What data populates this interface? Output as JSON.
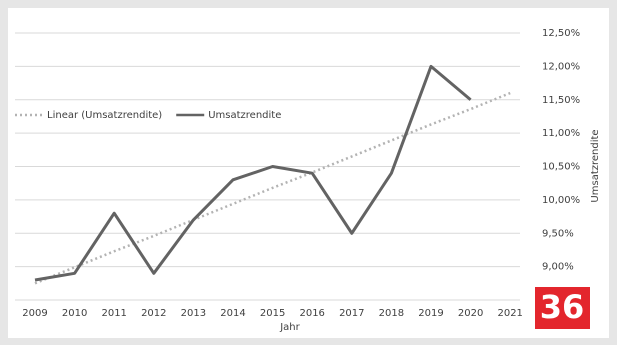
{
  "chart_data": {
    "type": "line",
    "x_label": "Jahr",
    "y_label": "Umsatzrendite",
    "categories": [
      "2009",
      "2010",
      "2011",
      "2012",
      "2013",
      "2014",
      "2015",
      "2016",
      "2017",
      "2018",
      "2019",
      "2020",
      "2021"
    ],
    "series": [
      {
        "name": "Linear (Umsatzrendite)",
        "color": "#b3b3b3",
        "dashed": true,
        "values": [
          8.75,
          8.99,
          9.23,
          9.46,
          9.7,
          9.94,
          10.18,
          10.41,
          10.65,
          10.89,
          11.13,
          11.36,
          11.6
        ]
      },
      {
        "name": "Umsatzrendite",
        "color": "#636363",
        "dashed": false,
        "values": [
          8.8,
          8.9,
          9.8,
          8.9,
          9.7,
          10.3,
          10.5,
          10.4,
          9.5,
          10.4,
          12.0,
          11.5,
          null
        ]
      }
    ],
    "ylim": [
      8.5,
      12.5
    ],
    "yticks": [
      {
        "value": 9,
        "label": "9,00%"
      },
      {
        "value": 9.5,
        "label": "9,50%"
      },
      {
        "value": 10,
        "label": "10,00%"
      },
      {
        "value": 10.5,
        "label": "10,50%"
      },
      {
        "value": 11,
        "label": "11,00%"
      },
      {
        "value": 11.5,
        "label": "11,50%"
      },
      {
        "value": 12,
        "label": "12,00%"
      },
      {
        "value": 12.5,
        "label": "12,50%"
      }
    ],
    "grid": true,
    "badge": "36"
  }
}
